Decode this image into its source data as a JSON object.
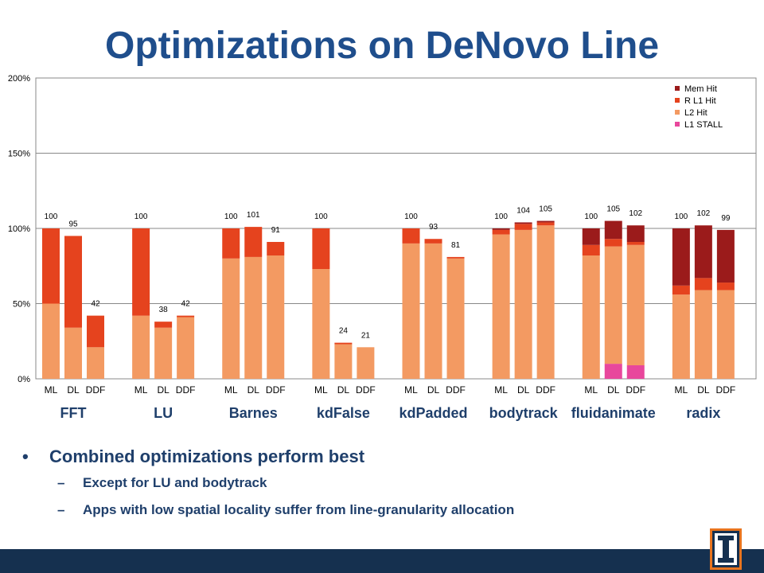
{
  "slide": {
    "title": "Optimizations on DeNovo Line",
    "bullets": [
      {
        "text": "Combined optimizations perform best",
        "subs": [
          "Except for LU and bodytrack",
          "Apps with low spatial locality suffer from line-granularity allocation"
        ]
      }
    ]
  },
  "chart_data": {
    "type": "bar",
    "stacked": true,
    "ylim": [
      0,
      200
    ],
    "yticks": [
      "0%",
      "50%",
      "100%",
      "150%",
      "200%"
    ],
    "grid": true,
    "legend_position": "top-right",
    "groups": [
      "FFT",
      "LU",
      "Barnes",
      "kdFalse",
      "kdPadded",
      "bodytrack",
      "fluidanimate",
      "radix"
    ],
    "bar_labels": [
      "ML",
      "DL",
      "DDF"
    ],
    "legend": [
      {
        "name": "Mem Hit",
        "color": "#9b1b1b"
      },
      {
        "name": "R L1 Hit",
        "color": "#e5431e"
      },
      {
        "name": "L2 Hit",
        "color": "#f39a62"
      },
      {
        "name": "L1 STALL",
        "color": "#e8479c"
      }
    ],
    "series_order_bottom_to_top": [
      "L1 STALL",
      "L2 Hit",
      "R L1 Hit",
      "Mem Hit"
    ],
    "bars": [
      [
        {
          "total": 100,
          "stack": [
            0,
            50,
            50,
            0
          ]
        },
        {
          "total": 95,
          "stack": [
            0,
            34,
            61,
            0
          ]
        },
        {
          "total": 42,
          "stack": [
            0,
            21,
            21,
            0
          ]
        }
      ],
      [
        {
          "total": 100,
          "stack": [
            0,
            42,
            58,
            0
          ]
        },
        {
          "total": 38,
          "stack": [
            0,
            34,
            4,
            0
          ]
        },
        {
          "total": 42,
          "stack": [
            0,
            41,
            1,
            0
          ]
        }
      ],
      [
        {
          "total": 100,
          "stack": [
            0,
            80,
            20,
            0
          ]
        },
        {
          "total": 101,
          "stack": [
            0,
            81,
            20,
            0
          ]
        },
        {
          "total": 91,
          "stack": [
            0,
            82,
            9,
            0
          ]
        }
      ],
      [
        {
          "total": 100,
          "stack": [
            0,
            73,
            27,
            0
          ]
        },
        {
          "total": 24,
          "stack": [
            0,
            23,
            1,
            0
          ]
        },
        {
          "total": 21,
          "stack": [
            0,
            21,
            0,
            0
          ]
        }
      ],
      [
        {
          "total": 100,
          "stack": [
            0,
            90,
            10,
            0
          ]
        },
        {
          "total": 93,
          "stack": [
            0,
            90,
            3,
            0
          ]
        },
        {
          "total": 81,
          "stack": [
            0,
            80,
            1,
            0
          ]
        }
      ],
      [
        {
          "total": 100,
          "stack": [
            0,
            96,
            3,
            1
          ]
        },
        {
          "total": 104,
          "stack": [
            0,
            99,
            4,
            1
          ]
        },
        {
          "total": 105,
          "stack": [
            0,
            102,
            2,
            1
          ]
        }
      ],
      [
        {
          "total": 100,
          "stack": [
            0,
            82,
            7,
            11
          ]
        },
        {
          "total": 105,
          "stack": [
            10,
            78,
            5,
            12
          ]
        },
        {
          "total": 102,
          "stack": [
            9,
            80,
            2,
            11
          ]
        }
      ],
      [
        {
          "total": 100,
          "stack": [
            0,
            56,
            6,
            38
          ]
        },
        {
          "total": 102,
          "stack": [
            0,
            59,
            8,
            35
          ]
        },
        {
          "total": 99,
          "stack": [
            0,
            59,
            5,
            35
          ]
        }
      ]
    ]
  }
}
